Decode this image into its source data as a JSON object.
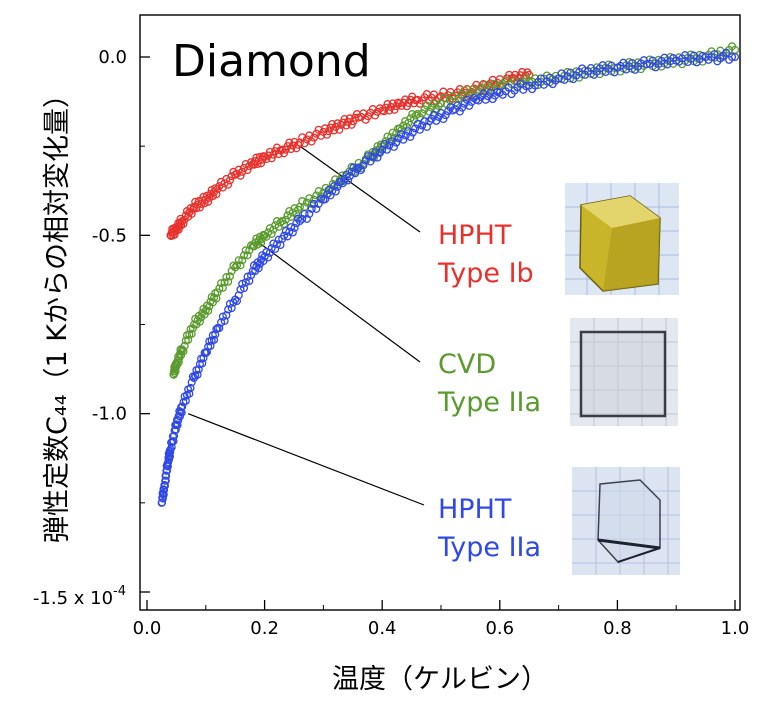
{
  "chart_data": {
    "type": "scatter",
    "title": "Diamond",
    "xlabel": "温度（ケルビン）",
    "ylabel": "弾性定数C₄₄（1 Kからの相対変化量）",
    "xlim": [
      0.0,
      1.0
    ],
    "ylim": [
      -1.5,
      0.1
    ],
    "y_multiplier_label": "x 10",
    "y_multiplier_exponent": "-4",
    "x_ticks": [
      "0.0",
      "0.2",
      "0.4",
      "0.6",
      "0.8",
      "1.0"
    ],
    "y_ticks": [
      "0.0",
      "-0.5",
      "-1.0",
      "-1.5"
    ],
    "grid": false,
    "series": [
      {
        "name": "HPHT Type Ib",
        "color": "#e8312c",
        "x": [
          0.04,
          0.05,
          0.06,
          0.08,
          0.1,
          0.12,
          0.15,
          0.18,
          0.2,
          0.23,
          0.26,
          0.3,
          0.33,
          0.36,
          0.4,
          0.43,
          0.46,
          0.5,
          0.54,
          0.58,
          0.62,
          0.65
        ],
        "y": [
          -0.5,
          -0.48,
          -0.46,
          -0.42,
          -0.4,
          -0.37,
          -0.33,
          -0.3,
          -0.28,
          -0.26,
          -0.24,
          -0.21,
          -0.19,
          -0.17,
          -0.15,
          -0.13,
          -0.12,
          -0.11,
          -0.1,
          -0.08,
          -0.06,
          -0.05
        ]
      },
      {
        "name": "CVD Type IIa",
        "color": "#5a9a2e",
        "x": [
          0.045,
          0.05,
          0.06,
          0.08,
          0.1,
          0.12,
          0.15,
          0.18,
          0.2,
          0.23,
          0.26,
          0.3,
          0.34,
          0.38,
          0.4,
          0.43,
          0.46,
          0.5,
          0.55,
          0.6,
          0.65,
          0.7,
          0.75,
          0.8,
          0.85,
          0.9,
          0.95,
          1.0
        ],
        "y": [
          -0.89,
          -0.86,
          -0.82,
          -0.75,
          -0.71,
          -0.66,
          -0.59,
          -0.53,
          -0.5,
          -0.46,
          -0.42,
          -0.38,
          -0.33,
          -0.28,
          -0.25,
          -0.2,
          -0.16,
          -0.13,
          -0.1,
          -0.08,
          -0.07,
          -0.06,
          -0.04,
          -0.03,
          -0.02,
          -0.01,
          0.0,
          0.02
        ]
      },
      {
        "name": "HPHT Type IIa",
        "color": "#2f48e8",
        "x": [
          0.025,
          0.03,
          0.035,
          0.04,
          0.05,
          0.06,
          0.08,
          0.1,
          0.12,
          0.15,
          0.18,
          0.2,
          0.23,
          0.26,
          0.3,
          0.33,
          0.36,
          0.4,
          0.44,
          0.48,
          0.52,
          0.56,
          0.6,
          0.65,
          0.7,
          0.75,
          0.8,
          0.85,
          0.9,
          0.95,
          1.0
        ],
        "y": [
          -1.25,
          -1.2,
          -1.14,
          -1.1,
          -1.03,
          -0.98,
          -0.9,
          -0.83,
          -0.76,
          -0.68,
          -0.6,
          -0.56,
          -0.51,
          -0.46,
          -0.4,
          -0.35,
          -0.31,
          -0.26,
          -0.22,
          -0.18,
          -0.15,
          -0.12,
          -0.1,
          -0.08,
          -0.06,
          -0.04,
          -0.03,
          -0.02,
          -0.01,
          0.0,
          0.0
        ]
      }
    ],
    "annotations": [
      {
        "line1": "HPHT",
        "line2": "Type Ib",
        "color": "#e8312c",
        "points_to": [
          0.26,
          -0.25
        ]
      },
      {
        "line1": "CVD",
        "line2": "Type IIa",
        "color": "#5a9a2e",
        "points_to": [
          0.19,
          -0.52
        ]
      },
      {
        "line1": "HPHT",
        "line2": "Type IIa",
        "color": "#2f48e8",
        "points_to": [
          0.07,
          -1.0
        ]
      }
    ],
    "photos": [
      {
        "icon": "yellow-diamond-crystal-photo",
        "color": "#c9b52a"
      },
      {
        "icon": "clear-cvd-diamond-plate-photo",
        "color": "#c8ccd4"
      },
      {
        "icon": "clear-hpht-diamond-crystal-photo",
        "color": "#cfd8e8"
      }
    ]
  }
}
